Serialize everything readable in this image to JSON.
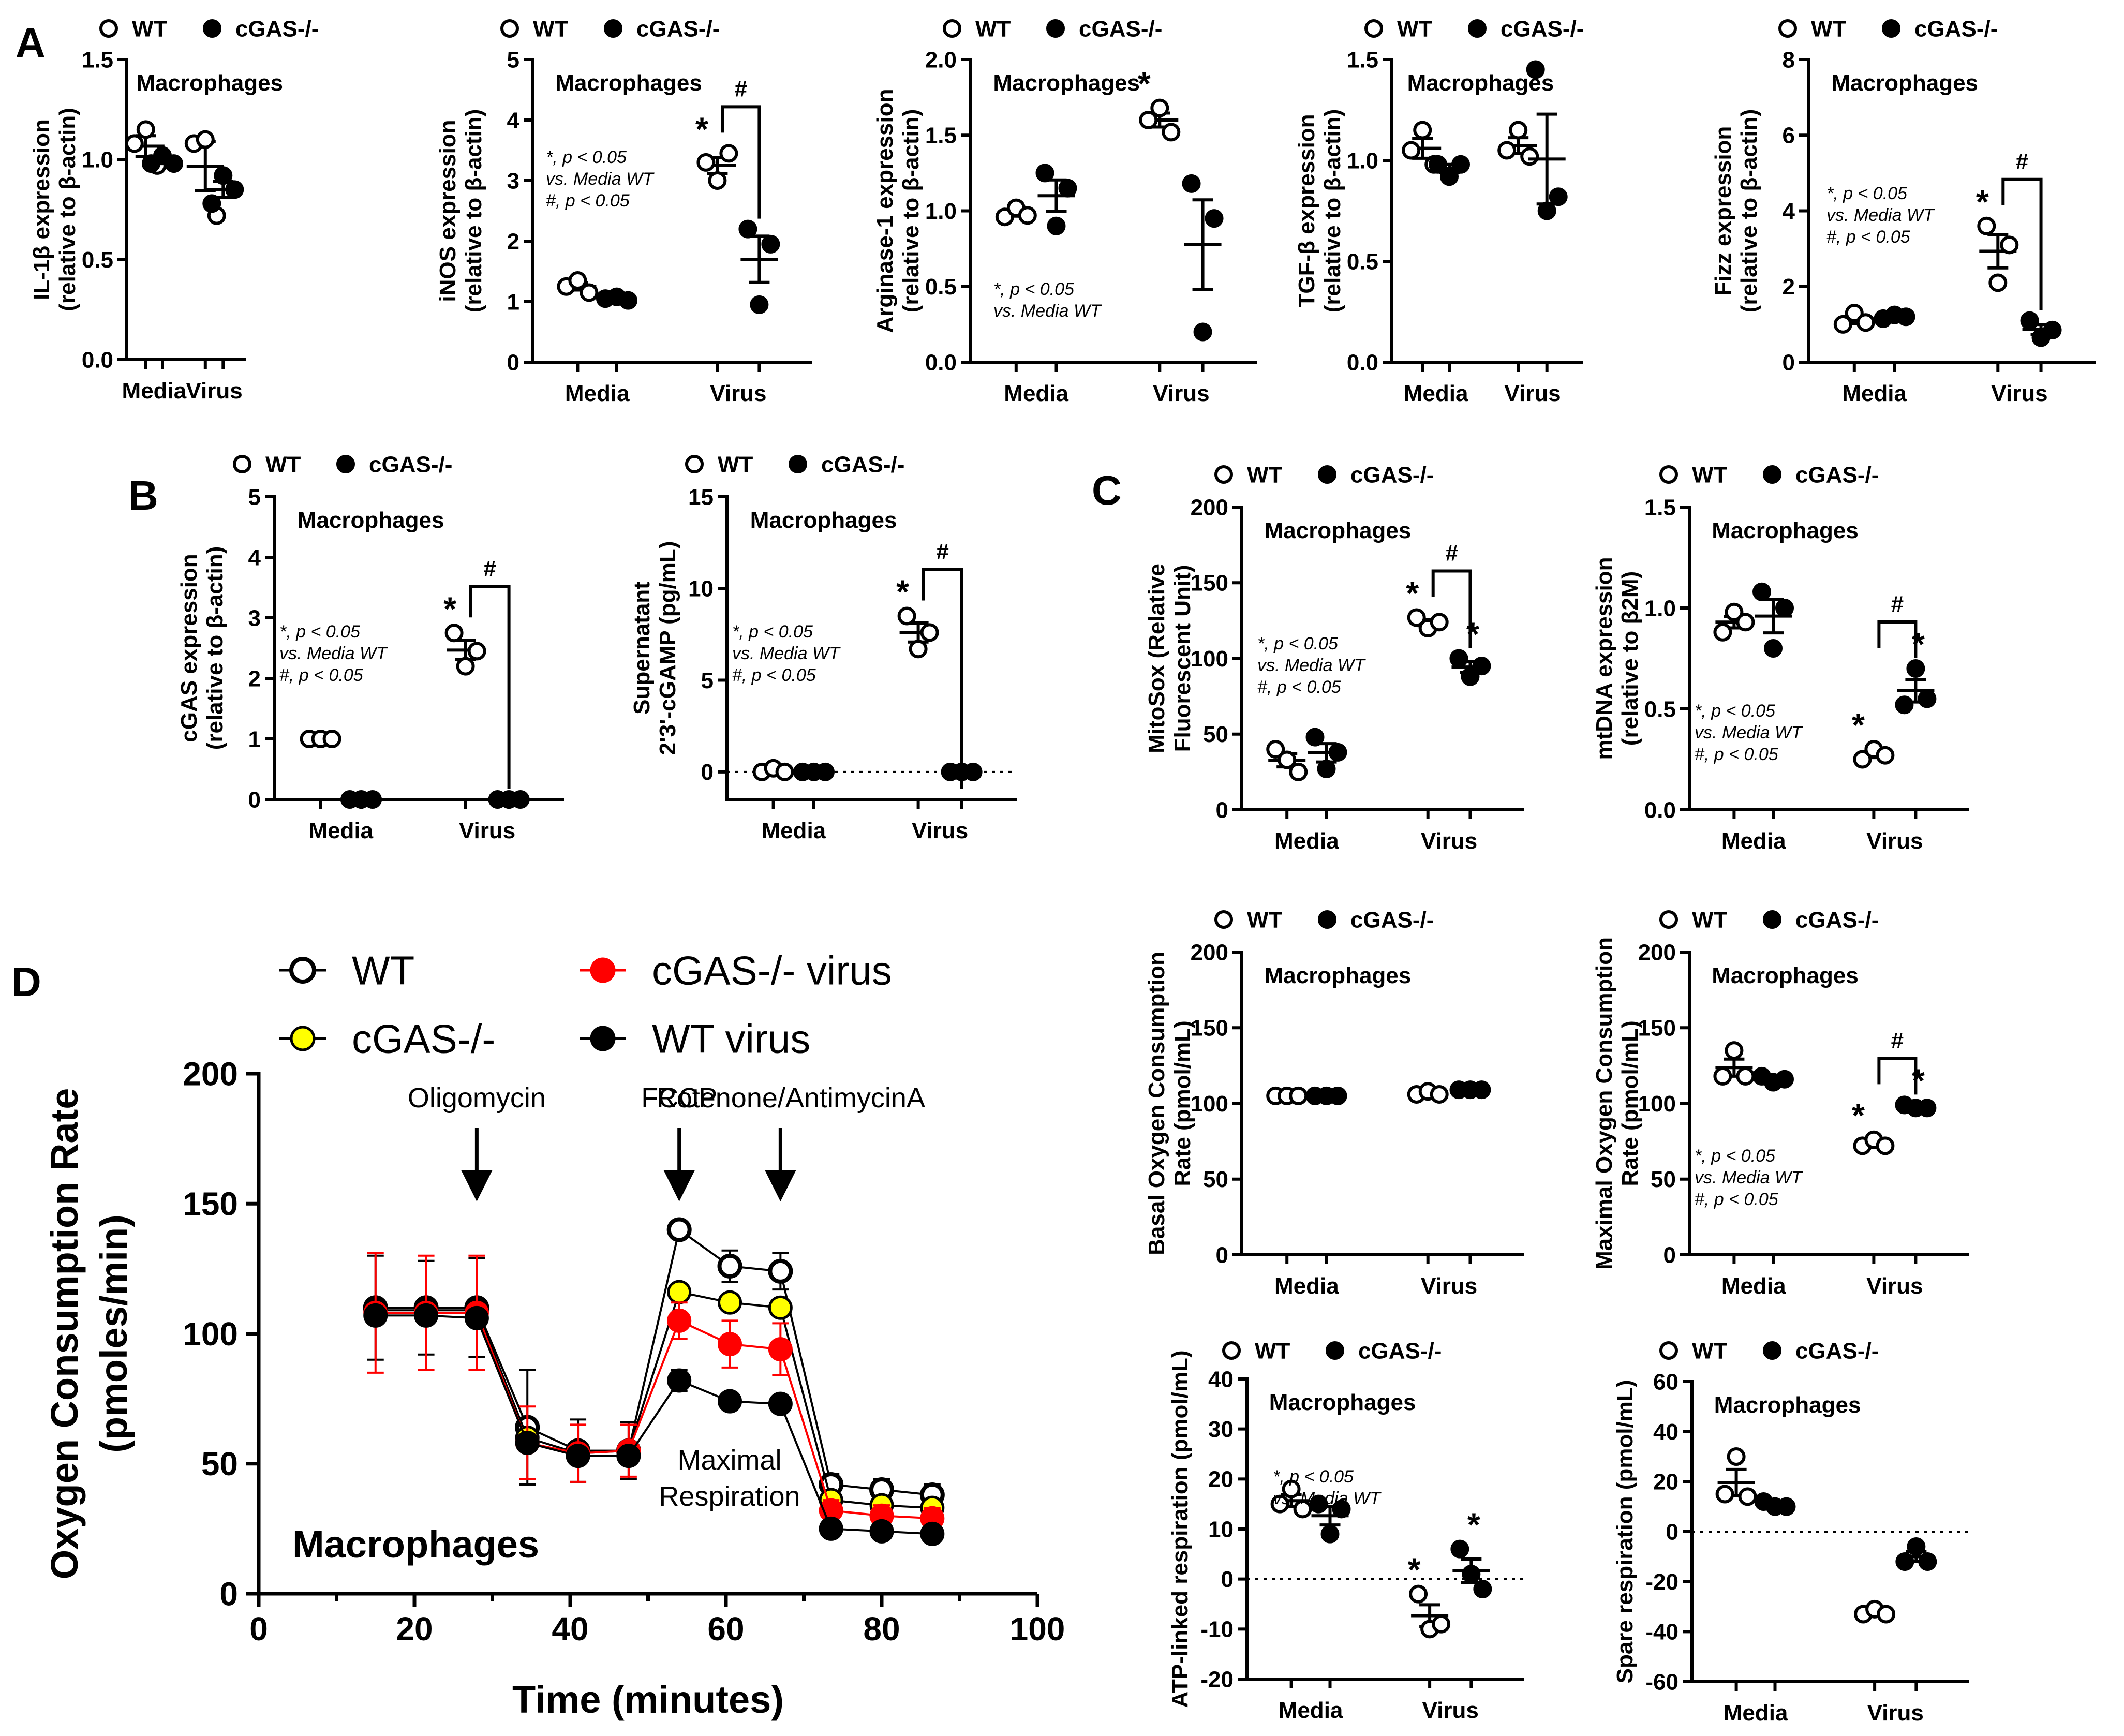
{
  "colors": {
    "axis": "#000000",
    "wt_fill": "#ffffff",
    "ko_fill": "#000000",
    "ko_yellow": "#ffff00",
    "red": "#ff0000"
  },
  "legend": {
    "wt": "WT",
    "ko": "cGAS-/-"
  },
  "panel_letters": [
    "A",
    "B",
    "C",
    "D"
  ],
  "chart_data": [
    {
      "id": "A1",
      "panel": "A",
      "type": "scatter",
      "title": "Macrophages",
      "ylabel_main": "IL-1β expression",
      "ylabel_sub": "(relative to β-actin)",
      "ylim": [
        0,
        1.5
      ],
      "yticks": [
        "0.0",
        "0.5",
        "1.0",
        "1.5"
      ],
      "categories": [
        "Media",
        "Virus"
      ],
      "series": [
        {
          "name": "WT",
          "values": [
            [
              1.08,
              1.15,
              0.97
            ],
            [
              1.08,
              1.1,
              0.72
            ]
          ]
        },
        {
          "name": "cGAS-/-",
          "values": [
            [
              0.98,
              1.02,
              0.98
            ],
            [
              0.78,
              0.92,
              0.85
            ]
          ]
        }
      ],
      "annotations": []
    },
    {
      "id": "A2",
      "panel": "A",
      "type": "scatter",
      "title": "Macrophages",
      "ylabel_main": "iNOS expression",
      "ylabel_sub": "(relative to β-actin)",
      "ylim": [
        0,
        5
      ],
      "yticks": [
        "0",
        "1",
        "2",
        "3",
        "4",
        "5"
      ],
      "categories": [
        "Media",
        "Virus"
      ],
      "series": [
        {
          "name": "WT",
          "values": [
            [
              1.25,
              1.35,
              1.15
            ],
            [
              3.3,
              3.0,
              3.45
            ]
          ]
        },
        {
          "name": "cGAS-/-",
          "values": [
            [
              1.05,
              1.08,
              1.02
            ],
            [
              2.2,
              0.95,
              1.95
            ]
          ]
        }
      ],
      "annotations": [
        {
          "kind": "star",
          "cat": 1,
          "series": 0,
          "text": "*"
        },
        {
          "kind": "bracket",
          "cat": 1,
          "text": "#"
        }
      ],
      "note": [
        "*, p < 0.05",
        "vs. Media WT",
        "#, p < 0.05"
      ]
    },
    {
      "id": "A3",
      "panel": "A",
      "type": "scatter",
      "title": "Macrophages",
      "ylabel_main": "Arginase-1 expression",
      "ylabel_sub": "(relative to β-actin)",
      "ylim": [
        0,
        2.0
      ],
      "yticks": [
        "0.0",
        "0.5",
        "1.0",
        "1.5",
        "2.0"
      ],
      "categories": [
        "Media",
        "Virus"
      ],
      "series": [
        {
          "name": "WT",
          "values": [
            [
              0.96,
              1.02,
              0.97
            ],
            [
              1.6,
              1.68,
              1.52
            ]
          ]
        },
        {
          "name": "cGAS-/-",
          "values": [
            [
              1.25,
              0.9,
              1.15
            ],
            [
              1.18,
              0.2,
              0.95
            ]
          ]
        }
      ],
      "annotations": [
        {
          "kind": "star",
          "cat": 1,
          "series": 0,
          "text": "*"
        }
      ],
      "note": [
        "*, p < 0.05",
        "vs. Media WT"
      ]
    },
    {
      "id": "A4",
      "panel": "A",
      "type": "scatter",
      "title": "Macrophages",
      "ylabel_main": "TGF-β expression",
      "ylabel_sub": "(relative to β-actin)",
      "ylim": [
        0,
        1.5
      ],
      "yticks": [
        "0.0",
        "0.5",
        "1.0",
        "1.5"
      ],
      "categories": [
        "Media",
        "Virus"
      ],
      "series": [
        {
          "name": "WT",
          "values": [
            [
              1.05,
              1.15,
              0.98
            ],
            [
              1.05,
              1.15,
              1.02
            ]
          ]
        },
        {
          "name": "cGAS-/-",
          "values": [
            [
              0.98,
              0.92,
              0.98
            ],
            [
              1.45,
              0.75,
              0.82
            ]
          ]
        }
      ],
      "annotations": []
    },
    {
      "id": "A5",
      "panel": "A",
      "type": "scatter",
      "title": "Macrophages",
      "ylabel_main": "Fizz expression",
      "ylabel_sub": "(relative to β-actin)",
      "ylim": [
        0,
        8
      ],
      "yticks": [
        "0",
        "2",
        "4",
        "6",
        "8"
      ],
      "categories": [
        "Media",
        "Virus"
      ],
      "series": [
        {
          "name": "WT",
          "values": [
            [
              1.0,
              1.3,
              1.05
            ],
            [
              3.6,
              2.1,
              3.1
            ]
          ]
        },
        {
          "name": "cGAS-/-",
          "values": [
            [
              1.15,
              1.25,
              1.2
            ],
            [
              1.1,
              0.65,
              0.85
            ]
          ]
        }
      ],
      "annotations": [
        {
          "kind": "star",
          "cat": 1,
          "series": 0,
          "text": "*"
        },
        {
          "kind": "bracket",
          "cat": 1,
          "text": "#"
        }
      ],
      "note": [
        "*, p < 0.05",
        "vs. Media WT",
        "#, p < 0.05"
      ]
    },
    {
      "id": "B1",
      "panel": "B",
      "type": "scatter",
      "title": "Macrophages",
      "ylabel_main": "cGAS expression",
      "ylabel_sub": "(relative to β-actin)",
      "ylim": [
        0,
        5
      ],
      "yticks": [
        "0",
        "1",
        "2",
        "3",
        "4",
        "5"
      ],
      "categories": [
        "Media",
        "Virus"
      ],
      "series": [
        {
          "name": "WT",
          "values": [
            [
              1.0,
              1.0,
              1.0
            ],
            [
              2.75,
              2.2,
              2.45
            ]
          ]
        },
        {
          "name": "cGAS-/-",
          "values": [
            [
              0,
              0,
              0
            ],
            [
              0,
              0,
              0
            ]
          ]
        }
      ],
      "annotations": [
        {
          "kind": "star",
          "cat": 1,
          "series": 0,
          "text": "*"
        },
        {
          "kind": "bracket",
          "cat": 1,
          "text": "#"
        }
      ],
      "note": [
        "*, p < 0.05",
        "vs. Media WT",
        "#, p < 0.05"
      ]
    },
    {
      "id": "B2",
      "panel": "B",
      "type": "scatter",
      "title": "Macrophages",
      "ylabel_main": "Supernatant",
      "ylabel_sub": "2'3'-cGAMP (pg/mL)",
      "ylim": [
        -1.5,
        15
      ],
      "yticks": [
        "0",
        "5",
        "10",
        "15"
      ],
      "ytickvals": [
        0,
        5,
        10,
        15
      ],
      "zero_line": true,
      "categories": [
        "Media",
        "Virus"
      ],
      "series": [
        {
          "name": "WT",
          "values": [
            [
              0,
              0.2,
              0
            ],
            [
              8.5,
              6.7,
              7.6
            ]
          ]
        },
        {
          "name": "cGAS-/-",
          "values": [
            [
              0,
              0,
              0
            ],
            [
              0,
              0,
              0
            ]
          ]
        }
      ],
      "annotations": [
        {
          "kind": "star",
          "cat": 1,
          "series": 0,
          "text": "*"
        },
        {
          "kind": "bracket",
          "cat": 1,
          "text": "#"
        }
      ],
      "note": [
        "*, p < 0.05",
        "vs. Media WT",
        "#, p < 0.05"
      ]
    },
    {
      "id": "C1",
      "panel": "C",
      "type": "scatter",
      "title": "Macrophages",
      "ylabel_main": "MitoSox (Relative",
      "ylabel_sub": "Fluorescent Unit)",
      "ylim": [
        0,
        200
      ],
      "yticks": [
        "0",
        "50",
        "100",
        "150",
        "200"
      ],
      "categories": [
        "Media",
        "Virus"
      ],
      "series": [
        {
          "name": "WT",
          "values": [
            [
              40,
              33,
              25
            ],
            [
              127,
              120,
              124
            ]
          ]
        },
        {
          "name": "cGAS-/-",
          "values": [
            [
              48,
              27,
              38
            ],
            [
              100,
              88,
              95
            ]
          ]
        }
      ],
      "annotations": [
        {
          "kind": "star",
          "cat": 1,
          "series": 0,
          "text": "*"
        },
        {
          "kind": "star",
          "cat": 1,
          "series": 1,
          "text": "*"
        },
        {
          "kind": "bracket",
          "cat": 1,
          "text": "#"
        }
      ],
      "note": [
        "*, p < 0.05",
        "vs. Media WT",
        "#, p < 0.05"
      ]
    },
    {
      "id": "C2",
      "panel": "C",
      "type": "scatter",
      "title": "Macrophages",
      "ylabel_main": "mtDNA expression",
      "ylabel_sub": "(relative to β2M)",
      "ylim": [
        0,
        1.5
      ],
      "yticks": [
        "0.0",
        "0.5",
        "1.0",
        "1.5"
      ],
      "categories": [
        "Media",
        "Virus"
      ],
      "series": [
        {
          "name": "WT",
          "values": [
            [
              0.88,
              0.98,
              0.93
            ],
            [
              0.25,
              0.3,
              0.27
            ]
          ]
        },
        {
          "name": "cGAS-/-",
          "values": [
            [
              1.08,
              0.8,
              1.0
            ],
            [
              0.52,
              0.7,
              0.55
            ]
          ]
        }
      ],
      "annotations": [
        {
          "kind": "star",
          "cat": 1,
          "series": 0,
          "text": "*"
        },
        {
          "kind": "star",
          "cat": 1,
          "series": 1,
          "text": "*"
        },
        {
          "kind": "bracket",
          "cat": 1,
          "text": "#"
        }
      ],
      "note": [
        "*, p < 0.05",
        "vs. Media WT",
        "#, p < 0.05"
      ]
    },
    {
      "id": "C3",
      "panel": "C",
      "type": "scatter",
      "title": "Macrophages",
      "ylabel_main": "Basal Oxygen Consumption",
      "ylabel_sub": "Rate (pmol/mL)",
      "ylim": [
        0,
        200
      ],
      "yticks": [
        "0",
        "50",
        "100",
        "150",
        "200"
      ],
      "categories": [
        "Media",
        "Virus"
      ],
      "series": [
        {
          "name": "WT",
          "values": [
            [
              105,
              105,
              105
            ],
            [
              106,
              108,
              106
            ]
          ]
        },
        {
          "name": "cGAS-/-",
          "values": [
            [
              105,
              105,
              105
            ],
            [
              109,
              109,
              109
            ]
          ]
        }
      ],
      "annotations": []
    },
    {
      "id": "C4",
      "panel": "C",
      "type": "scatter",
      "title": "Macrophages",
      "ylabel_main": "Maximal Oxygen Consumption",
      "ylabel_sub": "Rate (pmol/mL)",
      "ylim": [
        0,
        200
      ],
      "yticks": [
        "0",
        "50",
        "100",
        "150",
        "200"
      ],
      "categories": [
        "Media",
        "Virus"
      ],
      "series": [
        {
          "name": "WT",
          "values": [
            [
              118,
              135,
              118
            ],
            [
              72,
              76,
              72
            ]
          ]
        },
        {
          "name": "cGAS-/-",
          "values": [
            [
              118,
              114,
              116
            ],
            [
              99,
              97,
              97
            ]
          ]
        }
      ],
      "annotations": [
        {
          "kind": "star",
          "cat": 1,
          "series": 0,
          "text": "*"
        },
        {
          "kind": "star",
          "cat": 1,
          "series": 1,
          "text": "*"
        },
        {
          "kind": "bracket",
          "cat": 1,
          "text": "#"
        }
      ],
      "note": [
        "*, p < 0.05",
        "vs. Media WT",
        "#, p < 0.05"
      ]
    },
    {
      "id": "C5",
      "panel": "C",
      "type": "scatter",
      "title": "Macrophages",
      "ylabel_main": "ATP-linked respiration (pmol/mL)",
      "ylim": [
        -20,
        40
      ],
      "yticks": [
        "-20",
        "-10",
        "0",
        "10",
        "20",
        "30",
        "40"
      ],
      "zero_line": true,
      "categories": [
        "Media",
        "Virus"
      ],
      "series": [
        {
          "name": "WT",
          "values": [
            [
              15,
              18,
              14
            ],
            [
              -3,
              -10,
              -9
            ]
          ]
        },
        {
          "name": "cGAS-/-",
          "values": [
            [
              15,
              9,
              14
            ],
            [
              6,
              1,
              -2
            ]
          ]
        }
      ],
      "annotations": [
        {
          "kind": "star",
          "cat": 1,
          "series": 0,
          "text": "*"
        },
        {
          "kind": "star",
          "cat": 1,
          "series": 1,
          "text": "*"
        }
      ],
      "note": [
        "*, p < 0.05",
        "vs. Media WT"
      ]
    },
    {
      "id": "C6",
      "panel": "C",
      "type": "scatter",
      "title": "Macrophages",
      "ylabel_main": "Spare respiration (pmol/mL)",
      "ylim": [
        -60,
        60
      ],
      "yticks": [
        "-60",
        "-40",
        "-20",
        "0",
        "20",
        "40",
        "60"
      ],
      "zero_line": true,
      "categories": [
        "Media",
        "Virus"
      ],
      "series": [
        {
          "name": "WT",
          "values": [
            [
              15,
              30,
              14
            ],
            [
              -33,
              -31,
              -33
            ]
          ]
        },
        {
          "name": "cGAS-/-",
          "values": [
            [
              12,
              10,
              10
            ],
            [
              -12,
              -6,
              -12
            ]
          ]
        }
      ],
      "annotations": []
    },
    {
      "id": "D",
      "panel": "D",
      "type": "line",
      "title": "Macrophages",
      "xlabel": "Time (minutes)",
      "ylabel_main": "Oxygen Consumption Rate",
      "ylabel_sub": "(pmoles/min)",
      "xlim": [
        0,
        100
      ],
      "ylim": [
        0,
        200
      ],
      "xticks": [
        "0",
        "20",
        "40",
        "60",
        "80",
        "100"
      ],
      "yticks": [
        "0",
        "50",
        "100",
        "150",
        "200"
      ],
      "x": [
        15,
        21.5,
        28,
        34.5,
        41,
        47.5,
        54,
        60.5,
        67,
        73.5,
        80,
        86.5
      ],
      "series": [
        {
          "name": "WT",
          "style": "open",
          "values": [
            110,
            110,
            110,
            64,
            55,
            55,
            140,
            126,
            124,
            42,
            40,
            38
          ],
          "err": [
            20,
            18,
            19,
            22,
            12,
            11,
            3,
            6,
            7,
            4,
            4,
            4
          ]
        },
        {
          "name": "cGAS-/-",
          "style": "yellow",
          "values": [
            109,
            109,
            109,
            60,
            54,
            55,
            116,
            112,
            110,
            36,
            34,
            33
          ],
          "err": [
            0,
            0,
            0,
            0,
            0,
            0,
            0,
            0,
            0,
            0,
            0,
            0
          ]
        },
        {
          "name": "cGAS-/- virus",
          "style": "red",
          "values": [
            108,
            108,
            108,
            58,
            54,
            55,
            105,
            96,
            94,
            32,
            30,
            29
          ],
          "err": [
            23,
            22,
            22,
            14,
            11,
            10,
            7,
            9,
            10,
            4,
            4,
            4
          ]
        },
        {
          "name": "WT virus",
          "style": "black",
          "values": [
            107,
            107,
            106,
            58,
            53,
            53,
            82,
            74,
            73,
            25,
            24,
            23
          ],
          "err": [
            0,
            0,
            0,
            0,
            0,
            0,
            4,
            2,
            2,
            0,
            0,
            0
          ]
        }
      ],
      "injections": [
        {
          "label": "Oligomycin",
          "x": 28
        },
        {
          "label": "FCCP",
          "x": 54
        },
        {
          "label": "Rotenone/AntimycinA",
          "x": 67
        }
      ],
      "annotation_lines": [
        "Maximal",
        "Respiration"
      ],
      "legend_labels": [
        "WT",
        "cGAS-/- virus",
        "cGAS-/-",
        "WT virus"
      ]
    }
  ]
}
